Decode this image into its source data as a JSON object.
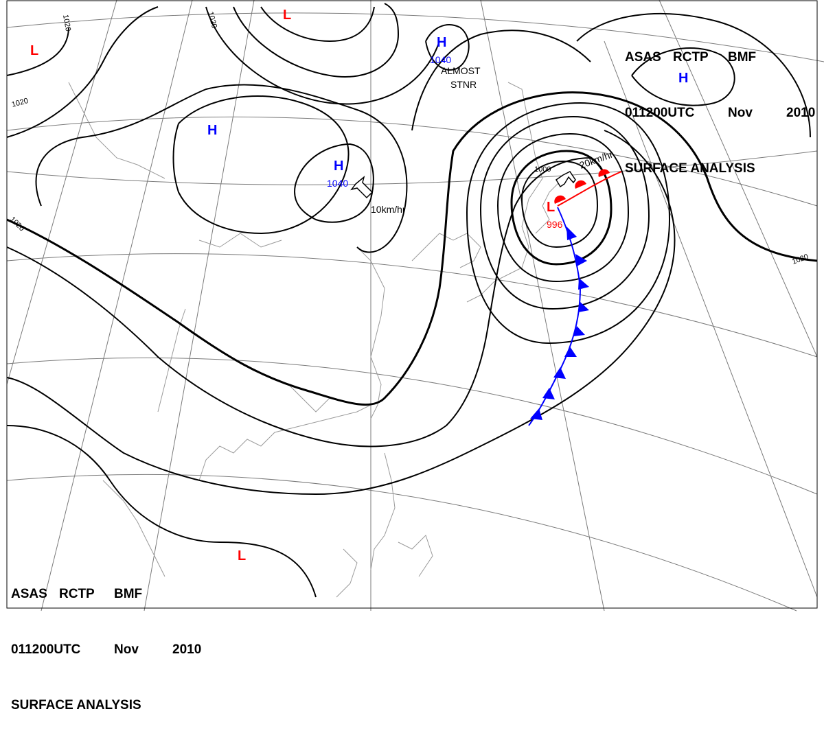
{
  "header": {
    "agency": "ASAS",
    "station": "RCTP",
    "office": "BMF",
    "time": "011200UTC",
    "month": "Nov",
    "year": "2010",
    "product": "SURFACE ANALYSIS"
  },
  "pressure_centers": [
    {
      "type": "H",
      "value": "1040",
      "color": "#0000ff"
    },
    {
      "type": "H",
      "value": "",
      "color": "#0000ff"
    },
    {
      "type": "H",
      "value": "1040",
      "color": "#0000ff"
    },
    {
      "type": "H",
      "value": "",
      "color": "#0000ff"
    },
    {
      "type": "L",
      "value": "996",
      "color": "#ff0000"
    },
    {
      "type": "L",
      "value": "",
      "color": "#ff0000"
    },
    {
      "type": "L",
      "value": "",
      "color": "#ff0000"
    },
    {
      "type": "L",
      "value": "",
      "color": "#ff0000"
    }
  ],
  "isobar_labels": [
    "1020",
    "1020",
    "1020",
    "1020",
    "1000",
    "1020"
  ],
  "motion": [
    {
      "speed": "10km/hr"
    },
    {
      "speed": "20km/hr"
    }
  ],
  "annotation": {
    "line1": "ALMOST",
    "line2": "STNR"
  },
  "colors": {
    "high": "#0000ff",
    "low": "#ff0000",
    "cold_front": "#0000ff",
    "warm_front": "#ff0000",
    "isobar": "#000000",
    "geography": "#9a9a9a",
    "grid": "#7a7a7a"
  },
  "icons": {
    "motion_arrow": "hollow-arrow-icon"
  }
}
